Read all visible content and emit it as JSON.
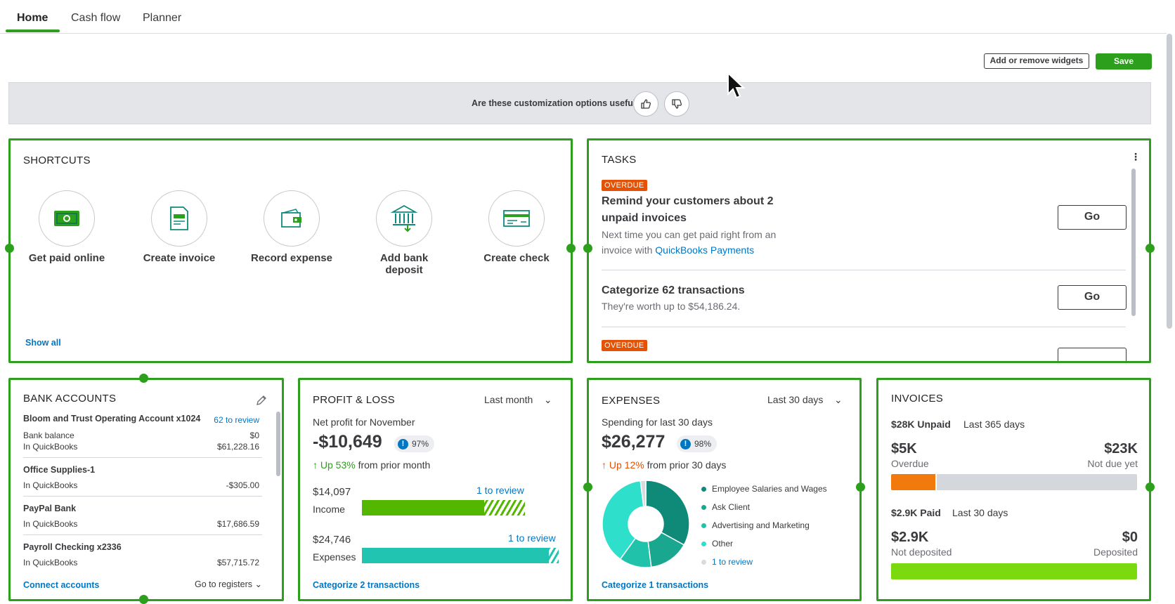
{
  "tabs": [
    {
      "label": "Home"
    },
    {
      "label": "Cash flow"
    },
    {
      "label": "Planner"
    }
  ],
  "toolbar": {
    "add_remove_label": "Add or remove widgets",
    "save_label": "Save"
  },
  "feedback": {
    "question": "Are these customization options useful?"
  },
  "shortcuts": {
    "title": "SHORTCUTS",
    "items": [
      {
        "label": "Get paid online",
        "icon": "cash-icon"
      },
      {
        "label": "Create invoice",
        "icon": "invoice-icon"
      },
      {
        "label": "Record expense",
        "icon": "wallet-icon"
      },
      {
        "label": "Add bank deposit",
        "icon": "bank-icon"
      },
      {
        "label": "Create check",
        "icon": "check-icon"
      }
    ],
    "show_all": "Show all"
  },
  "tasks": {
    "title": "TASKS",
    "items": [
      {
        "badge": "OVERDUE",
        "title": "Remind your customers about 2 unpaid invoices",
        "sub_prefix": "Next time you can get paid right from an invoice with ",
        "sub_link": "QuickBooks Payments",
        "button": "Go"
      },
      {
        "badge": "",
        "title": "Categorize 62 transactions",
        "sub_prefix": "They're worth up to $54,186.24.",
        "sub_link": "",
        "button": "Go"
      },
      {
        "badge": "OVERDUE",
        "title": "",
        "sub_prefix": "",
        "sub_link": "",
        "button": ""
      }
    ]
  },
  "bank_accounts": {
    "title": "BANK ACCOUNTS",
    "accounts": [
      {
        "name": "Bloom and Trust Operating Account x1024",
        "review": "62 to review",
        "bank_label": "Bank balance",
        "bank_value": "$0",
        "qb_label": "In QuickBooks",
        "qb_value": "$61,228.16"
      },
      {
        "name": "Office Supplies-1",
        "qb_label": "In QuickBooks",
        "qb_value": "-$305.00"
      },
      {
        "name": "PayPal Bank",
        "qb_label": "In QuickBooks",
        "qb_value": "$17,686.59"
      },
      {
        "name": "Payroll Checking x2336",
        "qb_label": "In QuickBooks",
        "qb_value": "$57,715.72"
      }
    ],
    "connect": "Connect accounts",
    "registers": "Go to registers"
  },
  "profit_loss": {
    "title": "PROFIT & LOSS",
    "period": "Last month",
    "subtitle": "Net profit for November",
    "net": "-$10,649",
    "pct": "97%",
    "trend_strong": "Up 53%",
    "trend_rest": "from prior month",
    "income_value": "$14,097",
    "income_label": "Income",
    "income_review": "1 to review",
    "income_fill": 0.75,
    "expenses_value": "$24,746",
    "expenses_label": "Expenses",
    "expenses_review": "1 to review",
    "expenses_fill": 0.95,
    "footer": "Categorize 2 transactions",
    "colors": {
      "income": "#53b700",
      "expenses": "#21c4b0"
    }
  },
  "expenses": {
    "title": "EXPENSES",
    "period": "Last 30 days",
    "subtitle": "Spending for last 30 days",
    "total": "$26,277",
    "pct": "98%",
    "trend_strong": "Up 12%",
    "trend_rest": "from prior 30 days",
    "legend": [
      {
        "label": "Employee Salaries and Wages",
        "color": "#0f8a79",
        "share": 0.33
      },
      {
        "label": "Ask Client",
        "color": "#19a88f",
        "share": 0.15
      },
      {
        "label": "Advertising and Marketing",
        "color": "#20c2aa",
        "share": 0.12
      },
      {
        "label": "Other",
        "color": "#2ee0cc",
        "share": 0.38
      },
      {
        "label": "1 to review",
        "color": "#d8dadd",
        "share": 0.02
      }
    ],
    "footer": "Categorize 1 transactions"
  },
  "invoices": {
    "title": "INVOICES",
    "unpaid_label": "$28K Unpaid",
    "unpaid_period": "Last 365 days",
    "overdue_value": "$5K",
    "overdue_label": "Overdue",
    "notdue_value": "$23K",
    "notdue_label": "Not due yet",
    "overdue_fraction": 0.18,
    "paid_label": "$2.9K Paid",
    "paid_period": "Last 30 days",
    "notdeposited_value": "$2.9K",
    "notdeposited_label": "Not deposited",
    "deposited_value": "$0",
    "deposited_label": "Deposited",
    "colors": {
      "overdue": "#f27a0d",
      "notdue": "#d4d7dc",
      "paid": "#7ad90f"
    }
  }
}
